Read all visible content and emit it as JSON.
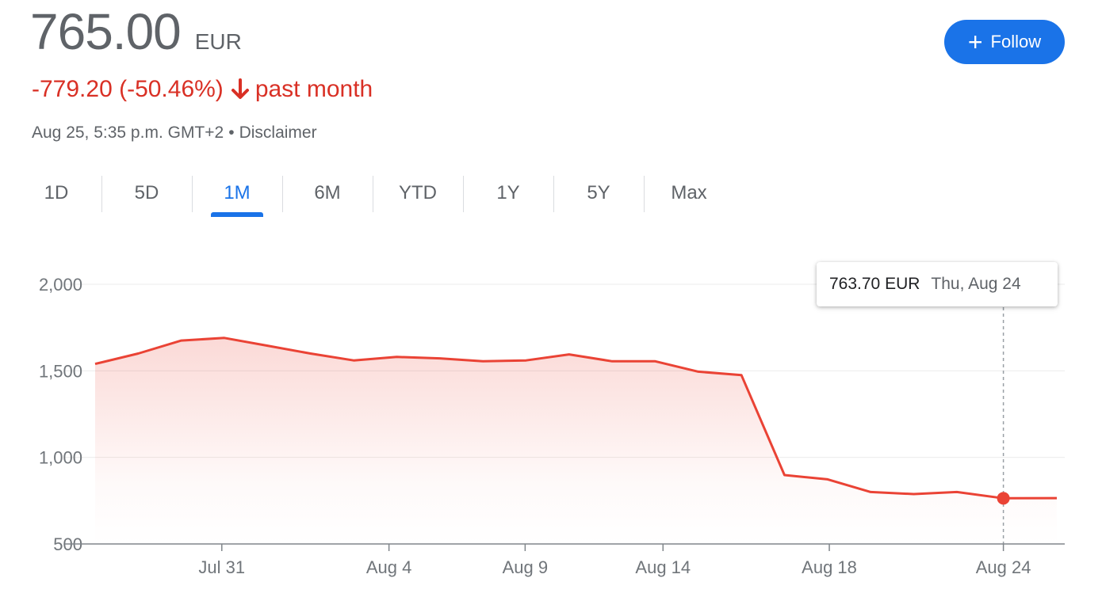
{
  "header": {
    "price": "765.00",
    "currency": "EUR",
    "change": "-779.20 (-50.46%)",
    "period": "past month",
    "timestamp": "Aug 25, 5:35 p.m. GMT+2",
    "separator": "•",
    "disclaimer": "Disclaimer",
    "follow_label": "Follow"
  },
  "tabs": [
    {
      "label": "1D"
    },
    {
      "label": "5D"
    },
    {
      "label": "1M",
      "active": true
    },
    {
      "label": "6M"
    },
    {
      "label": "YTD"
    },
    {
      "label": "1Y"
    },
    {
      "label": "5Y"
    },
    {
      "label": "Max"
    }
  ],
  "tooltip": {
    "value": "763.70 EUR",
    "date": "Thu, Aug 24"
  },
  "colors": {
    "line": "#ea4335",
    "accent": "#1a73e8",
    "negative": "#d93025"
  },
  "chart_data": {
    "type": "area",
    "ylim": [
      500,
      2000
    ],
    "yticks": [
      {
        "value": 500,
        "label": "500"
      },
      {
        "value": 1000,
        "label": "1,000"
      },
      {
        "value": 1500,
        "label": "1,500"
      },
      {
        "value": 2000,
        "label": "2,000"
      }
    ],
    "xticks": [
      {
        "x": 7.35,
        "label": "Jul 31"
      },
      {
        "x": 17.05,
        "label": "Aug 4"
      },
      {
        "x": 24.95,
        "label": "Aug 9"
      },
      {
        "x": 32.95,
        "label": "Aug 14"
      },
      {
        "x": 42.6,
        "label": "Aug 18"
      },
      {
        "x": 52.7,
        "label": "Aug 24"
      }
    ],
    "xlim": [
      0,
      55.8
    ],
    "series": [
      {
        "x": [
          0,
          2.5,
          5,
          7.5,
          10,
          12.5,
          15,
          17.5,
          20,
          22.5,
          25,
          27.5,
          30,
          32.5,
          35,
          37.5,
          40,
          42.5,
          45,
          47.5,
          50,
          52.7,
          55.8
        ],
        "values": [
          1540,
          1600,
          1675,
          1690,
          1645,
          1600,
          1560,
          1580,
          1572,
          1555,
          1560,
          1595,
          1555,
          1555,
          1495,
          1475,
          898,
          873,
          800,
          788,
          800,
          763.7,
          765
        ]
      }
    ],
    "highlight": {
      "x": 52.7,
      "value": 763.7
    }
  }
}
